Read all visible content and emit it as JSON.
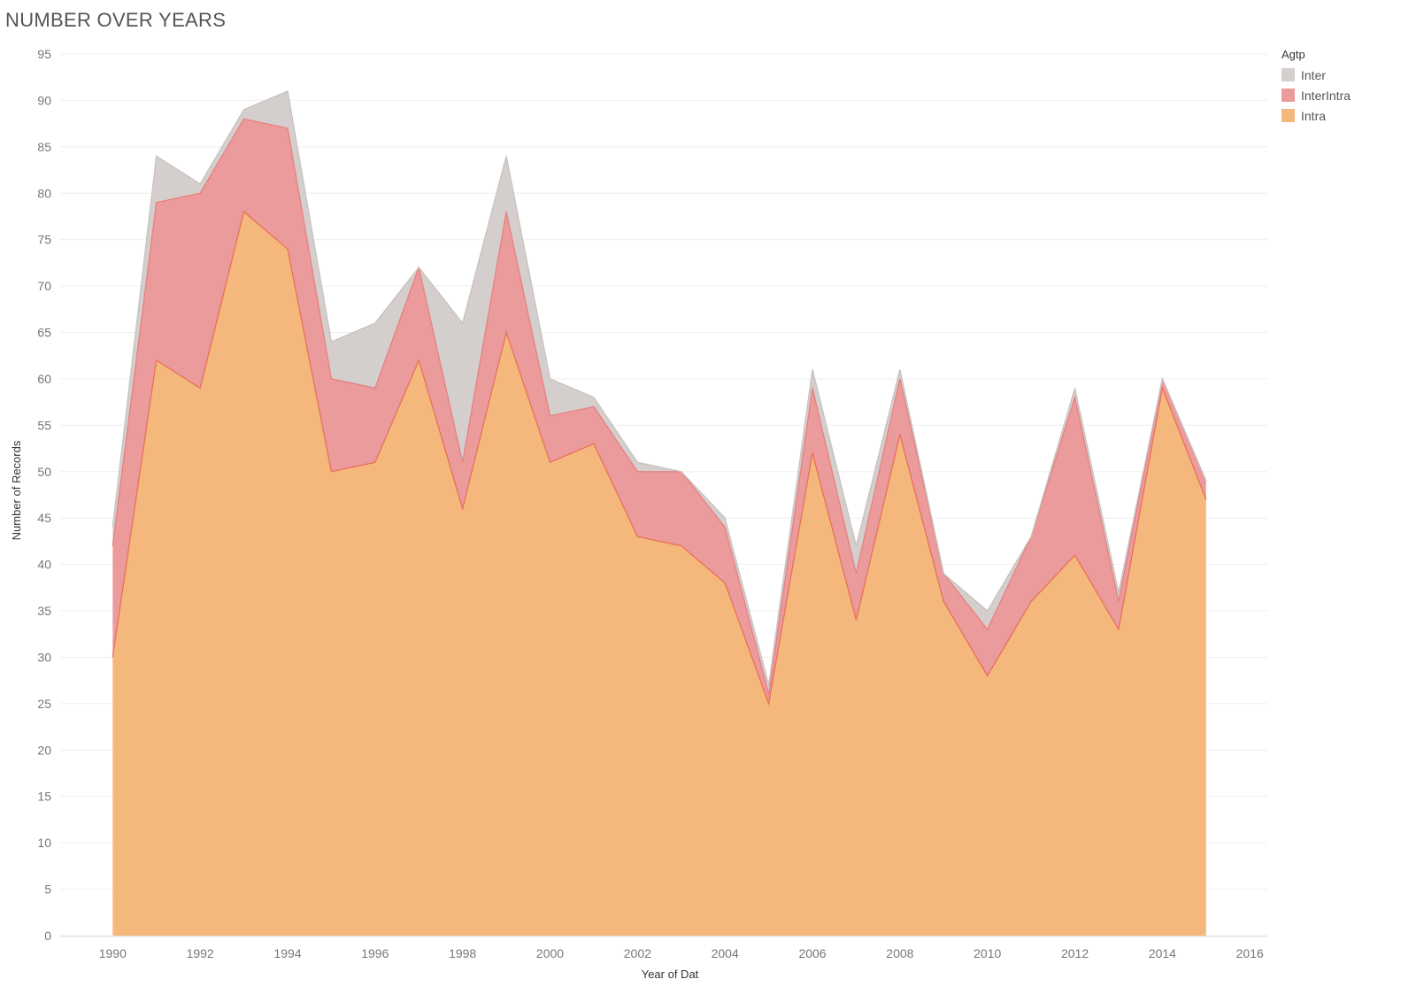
{
  "chart_data": {
    "type": "area",
    "title": "NUMBER OVER YEARS",
    "xlabel": "Year of Dat",
    "ylabel": "Number of Records",
    "xlim": [
      1988.8,
      2016.4
    ],
    "ylim": [
      0,
      95
    ],
    "x_ticks": [
      1990,
      1992,
      1994,
      1996,
      1998,
      2000,
      2002,
      2004,
      2006,
      2008,
      2010,
      2012,
      2014,
      2016
    ],
    "y_ticks": [
      0,
      5,
      10,
      15,
      20,
      25,
      30,
      35,
      40,
      45,
      50,
      55,
      60,
      65,
      70,
      75,
      80,
      85,
      90,
      95
    ],
    "grid": true,
    "stacked": true,
    "legend": {
      "title": "Agtp",
      "placement": "right"
    },
    "x": [
      1990,
      1991,
      1992,
      1993,
      1994,
      1995,
      1996,
      1997,
      1998,
      1999,
      2000,
      2001,
      2002,
      2003,
      2004,
      2005,
      2006,
      2007,
      2008,
      2009,
      2010,
      2011,
      2012,
      2013,
      2014,
      2015
    ],
    "series": [
      {
        "name": "Inter",
        "color": "#d4cfcc",
        "line_color": "#c8c2bf",
        "values": [
          2,
          5,
          1,
          1,
          4,
          4,
          7,
          0,
          15,
          6,
          4,
          1,
          1,
          0,
          1,
          1,
          2,
          3,
          1,
          0,
          2,
          0,
          1,
          1,
          0,
          0
        ]
      },
      {
        "name": "InterIntra",
        "color": "#eb9b9c",
        "line_color": "#e87f81",
        "values": [
          12,
          17,
          21,
          10,
          13,
          10,
          8,
          10,
          5,
          13,
          5,
          4,
          7,
          8,
          6,
          1,
          7,
          5,
          6,
          3,
          5,
          7,
          17,
          3,
          1,
          2
        ]
      },
      {
        "name": "Intra",
        "color": "#f5b87c",
        "line_color": "#e8705a",
        "values": [
          30,
          62,
          59,
          78,
          74,
          50,
          51,
          62,
          46,
          65,
          51,
          53,
          43,
          42,
          38,
          25,
          52,
          34,
          54,
          36,
          28,
          36,
          41,
          33,
          59,
          47
        ]
      }
    ]
  }
}
